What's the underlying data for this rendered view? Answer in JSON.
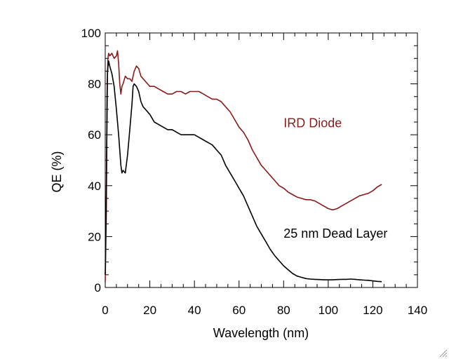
{
  "chart_data": {
    "type": "line",
    "xlabel": "Wavelength (nm)",
    "ylabel": "QE (%)",
    "xlim": [
      0,
      140
    ],
    "ylim": [
      0,
      100
    ],
    "xticks": [
      0,
      20,
      40,
      60,
      80,
      100,
      120,
      140
    ],
    "xtick_labels": [
      "0",
      "20",
      "40",
      "60",
      "80",
      "100",
      "120",
      "140"
    ],
    "yticks": [
      0,
      20,
      40,
      60,
      80,
      100
    ],
    "ytick_labels": [
      "0",
      "20",
      "40",
      "60",
      "80",
      "100"
    ],
    "grid": false,
    "series": [
      {
        "name": "IRD Diode",
        "color": "#8b1a1a",
        "x": [
          0,
          0.5,
          0.8,
          1.2,
          1.5,
          2,
          3,
          4,
          5,
          5.5,
          6,
          6.5,
          7,
          7.5,
          8,
          9,
          10,
          11,
          12,
          13,
          14,
          15,
          16,
          17,
          18,
          19,
          20,
          22,
          24,
          26,
          28,
          30,
          32,
          34,
          36,
          38,
          40,
          42,
          44,
          46,
          48,
          50,
          52,
          54,
          56,
          58,
          60,
          62,
          64,
          66,
          68,
          70,
          72,
          74,
          76,
          78,
          80,
          82,
          84,
          86,
          88,
          90,
          92,
          94,
          96,
          98,
          100,
          102,
          104,
          106,
          108,
          110,
          112,
          114,
          116,
          118,
          120,
          122,
          124
        ],
        "values": [
          2,
          30,
          75,
          90,
          92,
          91,
          92,
          90,
          91,
          93,
          88,
          80,
          76,
          79,
          80,
          83,
          82,
          82,
          81,
          85,
          87,
          86,
          83,
          82,
          81,
          80,
          79,
          79,
          78,
          77,
          76,
          76,
          77,
          77,
          76,
          77,
          77,
          77,
          76,
          75,
          74,
          74,
          73,
          71,
          69,
          66,
          63,
          61,
          58,
          54,
          51,
          48,
          46,
          44,
          42,
          40,
          39,
          37.5,
          36.5,
          35.5,
          35,
          34.5,
          34.5,
          34,
          33,
          32,
          31,
          30.5,
          31,
          32,
          33,
          34,
          35,
          36,
          36.5,
          37,
          38,
          39.5,
          40.5
        ]
      },
      {
        "name": "25 nm Dead Layer",
        "color": "#000000",
        "x": [
          0,
          0.5,
          1,
          1.5,
          2,
          3,
          4,
          5,
          6,
          7,
          7.5,
          8,
          9,
          10,
          11,
          12,
          12.5,
          13,
          14,
          15,
          16,
          17,
          18,
          20,
          22,
          24,
          26,
          28,
          30,
          32,
          34,
          36,
          38,
          40,
          42,
          44,
          46,
          48,
          50,
          52,
          54,
          56,
          58,
          60,
          62,
          64,
          66,
          68,
          70,
          72,
          74,
          76,
          78,
          80,
          82,
          84,
          86,
          88,
          90,
          92,
          94,
          96,
          98,
          100,
          102,
          104,
          106,
          108,
          110,
          112,
          114,
          116,
          118,
          120,
          122,
          124
        ],
        "values": [
          5,
          40,
          85,
          89,
          87,
          84,
          79,
          70,
          60,
          48,
          45,
          46,
          45,
          52,
          62,
          72,
          79,
          80,
          79,
          77,
          73,
          71,
          70,
          68,
          65,
          64,
          63,
          62,
          62,
          61,
          60,
          60,
          60,
          60,
          59,
          58,
          57,
          56,
          54,
          52,
          48,
          45,
          42,
          39,
          36,
          32,
          28,
          24,
          21,
          18,
          15,
          12.5,
          10.5,
          8.5,
          7,
          5.5,
          4.5,
          4,
          3.5,
          3.3,
          3.2,
          3.1,
          3.0,
          3.0,
          3.0,
          3.1,
          3.2,
          3.2,
          3.3,
          3.2,
          3.0,
          2.9,
          2.8,
          2.6,
          2.4,
          2.3
        ]
      }
    ],
    "annotations": [
      {
        "text": "IRD Diode",
        "x": 80,
        "y": 63,
        "color": "#8b1a1a"
      },
      {
        "text": "25 nm Dead Layer",
        "x": 80,
        "y": 19.5,
        "color": "#000000"
      }
    ]
  }
}
